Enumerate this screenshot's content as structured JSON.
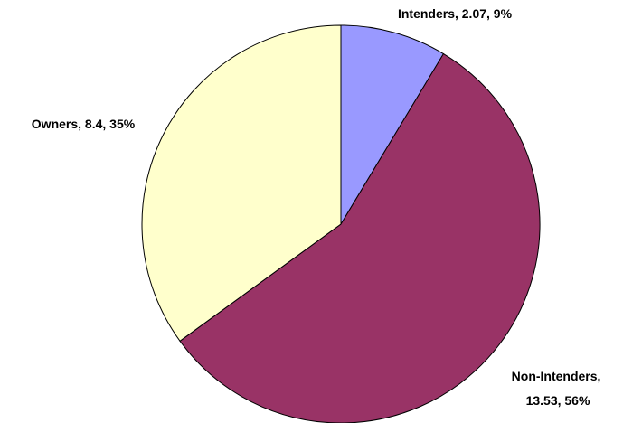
{
  "chart_data": {
    "type": "pie",
    "title": "",
    "slices": [
      {
        "name": "Intenders",
        "value": 2.07,
        "percent": "9%",
        "color": "#9999FF",
        "label_lines": [
          "Intenders, 2.07, 9%"
        ]
      },
      {
        "name": "Non-Intenders",
        "value": 13.53,
        "percent": "56%",
        "color": "#993366",
        "label_lines": [
          "Non-Intenders,",
          "13.53, 56%"
        ]
      },
      {
        "name": "Owners",
        "value": 8.4,
        "percent": "35%",
        "color": "#FFFFCC",
        "label_lines": [
          "Owners, 8.4, 35%"
        ]
      }
    ],
    "start_angle_deg": 0,
    "direction": "clockwise",
    "legend": "none"
  }
}
